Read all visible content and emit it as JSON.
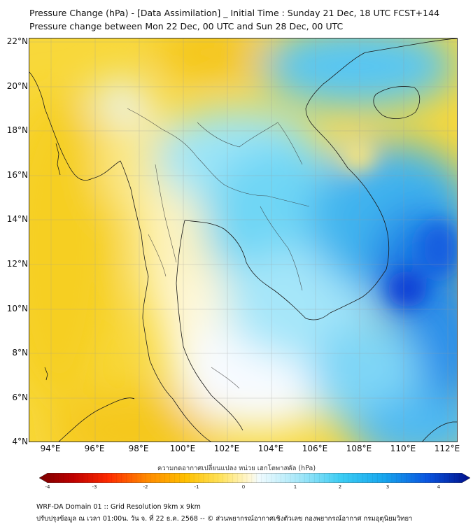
{
  "header": {
    "title": "Pressure Change (hPa) - [Data Assimilation] _ Initial Time : Sunday 21 Dec, 18 UTC FCST+144",
    "subtitle": "Pressure change between Mon 22 Dec, 00 UTC and Sun 28 Dec, 00 UTC"
  },
  "map": {
    "lat_labels": [
      "22°N",
      "20°N",
      "18°N",
      "16°N",
      "14°N",
      "12°N",
      "10°N",
      "8°N",
      "6°N",
      "4°N"
    ],
    "lon_labels": [
      "94°E",
      "96°E",
      "98°E",
      "100°E",
      "102°E",
      "104°E",
      "106°E",
      "108°E",
      "110°E",
      "112°E"
    ],
    "lat_range": [
      4,
      22
    ],
    "lon_range": [
      93,
      112.5
    ],
    "field_description_colors": {
      "positive_strong": "#0a3fd6",
      "positive_mid": "#1ec8f0",
      "near_zero": "#ffffff",
      "negative_weak": "#fde87a",
      "negative_mid": "#f7d21c"
    }
  },
  "colorbar": {
    "caption": "ความกดอากาศเปลี่ยนแปลง หน่วย เฮกโตพาสคัล (hPa)",
    "ticks": [
      "-4",
      "-3",
      "-2",
      "-1",
      "0",
      "1",
      "2",
      "3",
      "4"
    ],
    "range": [
      -4,
      4
    ]
  },
  "footer": {
    "line1": "WRF-DA Domain 01 :: Grid Resolution 9km x 9km",
    "line2": "ปรับปรุงข้อมูล ณ เวลา 01:00น. วัน จ. ที่ 22 ธ.ค. 2568 -- © ส่วนพยากรณ์อากาศเชิงตัวเลข กองพยากรณ์อากาศ กรมอุตุนิยมวิทยา"
  }
}
